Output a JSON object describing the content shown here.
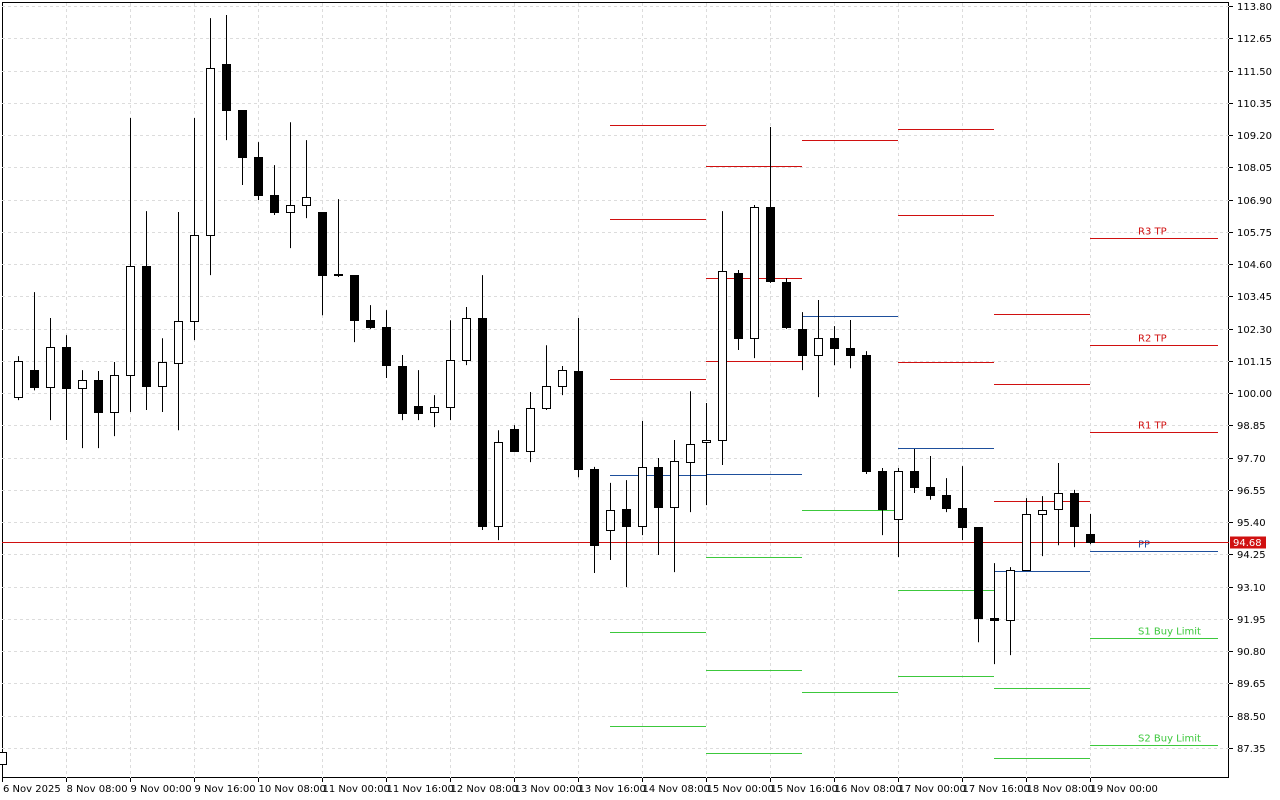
{
  "chart_data": {
    "type": "candlestick",
    "categories": [
      "6 Nov 2025",
      null,
      null,
      null,
      "8 Nov 08:00",
      null,
      null,
      null,
      "9 Nov 00:00",
      null,
      null,
      null,
      "9 Nov 16:00",
      null,
      null,
      null,
      "10 Nov 08:00",
      null,
      null,
      null,
      "11 Nov 00:00",
      null,
      null,
      null,
      "11 Nov 16:00",
      null,
      null,
      null,
      "12 Nov 08:00",
      null,
      null,
      null,
      "13 Nov 00:00",
      null,
      null,
      null,
      "13 Nov 16:00",
      null,
      null,
      null,
      "14 Nov 08:00",
      null,
      null,
      null,
      "15 Nov 00:00",
      null,
      null,
      null,
      "15 Nov 16:00",
      null,
      null,
      null,
      "16 Nov 08:00",
      null,
      null,
      null,
      "17 Nov 00:00",
      null,
      null,
      null,
      "17 Nov 16:00",
      null,
      null,
      null,
      "18 Nov 08:00",
      null,
      null,
      null,
      "19 Nov 00:00"
    ],
    "open": [
      86.78,
      99.86,
      100.82,
      100.22,
      101.64,
      100.18,
      100.47,
      99.33,
      100.64,
      104.53,
      100.25,
      101.07,
      102.57,
      105.64,
      111.73,
      110.09,
      108.42,
      107.06,
      106.46,
      106.71,
      106.46,
      104.25,
      104.21,
      102.61,
      102.36,
      100.96,
      99.54,
      99.33,
      99.5,
      101.18,
      102.68,
      95.26,
      98.72,
      97.94,
      99.47,
      100.25,
      100.79,
      97.3,
      95.12,
      95.87,
      95.26,
      97.37,
      95.94,
      97.55,
      98.26,
      98.33,
      104.28,
      101.96,
      106.63,
      103.96,
      102.29,
      101.36,
      101.96,
      101.61,
      101.36,
      97.22,
      95.51,
      97.22,
      96.65,
      96.37,
      95.9,
      95.23,
      91.98,
      91.91,
      93.69,
      95.69,
      95.87,
      96.44,
      94.98
    ],
    "high": [
      87.25,
      101.32,
      103.6,
      102.68,
      102.07,
      100.82,
      100.79,
      101.11,
      109.81,
      106.49,
      101.96,
      106.46,
      109.81,
      113.37,
      113.48,
      110.09,
      108.95,
      108.13,
      109.66,
      109.02,
      106.46,
      106.92,
      104.21,
      103.14,
      102.96,
      101.36,
      100.82,
      99.93,
      102.6,
      103.07,
      104.21,
      98.68,
      98.86,
      100.04,
      101.71,
      100.97,
      102.68,
      97.37,
      96.8,
      96.9,
      99.01,
      97.69,
      98.33,
      100.07,
      99.65,
      106.49,
      104.39,
      106.71,
      109.49,
      104.1,
      102.89,
      103.32,
      102.39,
      102.61,
      101.5,
      97.33,
      97.33,
      98.01,
      97.76,
      96.97,
      97.4,
      95.23,
      93.94,
      93.8,
      96.26,
      96.33,
      97.51,
      96.55,
      95.69
    ],
    "low": [
      86.75,
      99.75,
      100.1,
      99.04,
      98.33,
      98.04,
      98.04,
      98.47,
      99.33,
      99.4,
      99.33,
      98.68,
      101.89,
      104.21,
      109.02,
      107.42,
      106.88,
      106.35,
      105.17,
      106.24,
      102.78,
      104.14,
      101.82,
      102.29,
      100.54,
      99.04,
      99.04,
      98.79,
      99.04,
      101.0,
      95.12,
      94.76,
      97.9,
      97.54,
      99.4,
      99.93,
      97.0,
      93.59,
      94.05,
      93.09,
      94.94,
      94.23,
      93.62,
      95.76,
      96.01,
      97.44,
      101.54,
      101.25,
      103.93,
      102.29,
      100.82,
      99.86,
      101.0,
      100.89,
      97.12,
      94.94,
      94.16,
      96.44,
      96.2,
      95.76,
      94.76,
      91.12,
      90.34,
      90.66,
      93.69,
      94.19,
      94.58,
      94.51,
      94.62
    ],
    "close": [
      87.2,
      101.14,
      100.22,
      101.64,
      100.18,
      100.47,
      99.33,
      100.64,
      104.53,
      100.25,
      101.11,
      102.57,
      105.64,
      111.59,
      110.09,
      108.42,
      107.06,
      106.46,
      106.71,
      107.0,
      104.21,
      104.21,
      102.61,
      102.36,
      101.0,
      99.29,
      99.29,
      99.5,
      101.18,
      102.68,
      95.26,
      98.26,
      97.94,
      99.47,
      100.25,
      100.82,
      97.3,
      94.58,
      95.83,
      95.26,
      97.37,
      95.94,
      97.58,
      98.19,
      98.33,
      104.35,
      101.96,
      106.63,
      104.0,
      102.36,
      101.36,
      101.96,
      101.61,
      101.36,
      97.22,
      95.87,
      97.22,
      96.65,
      96.37,
      95.9,
      95.23,
      91.98,
      91.91,
      93.69,
      95.69,
      95.83,
      96.44,
      95.26,
      94.68
    ],
    "up_color": "#ffffff",
    "down_color": "#000000",
    "ylim": [
      86.28,
      113.91
    ],
    "yticks": [
      87.35,
      {
        "value": 88.5,
        "label": "88.50"
      },
      89.65,
      {
        "value": 90.8,
        "label": "90.80"
      },
      91.95,
      {
        "value": 93.1,
        "label": "93.10"
      },
      94.25,
      {
        "value": 95.4,
        "label": "95.40"
      },
      96.55,
      {
        "value": 97.7,
        "label": "97.70"
      },
      98.85,
      {
        "value": 100,
        "label": "100.00"
      },
      101.15,
      {
        "value": 102.3,
        "label": "102.30"
      },
      103.45,
      {
        "value": 104.6,
        "label": "104.60"
      },
      105.75,
      {
        "value": 106.9,
        "label": "106.90"
      },
      108.05,
      {
        "value": 109.2,
        "label": "109.20"
      },
      110.35,
      {
        "value": 111.5,
        "label": "111.50"
      },
      112.65,
      {
        "value": 113.8,
        "label": "113.80"
      }
    ],
    "grid": true,
    "last_price": 94.68,
    "last_price_color": "#d01010",
    "levels": [
      {
        "from": 38,
        "to": 44,
        "lines": [
          {
            "value": 109.55,
            "color": "#d01010"
          },
          {
            "value": 106.2,
            "color": "#d01010"
          },
          {
            "value": 100.5,
            "color": "#d01010"
          },
          {
            "value": 97.1,
            "color": "#1e4f9c"
          },
          {
            "value": 91.48,
            "color": "#3cc83c"
          },
          {
            "value": 88.13,
            "color": "#3cc83c"
          }
        ]
      },
      {
        "from": 44,
        "to": 50,
        "lines": [
          {
            "value": 108.1,
            "color": "#d01010"
          },
          {
            "value": 104.1,
            "color": "#d01010"
          },
          {
            "value": 101.14,
            "color": "#d01010"
          },
          {
            "value": 97.12,
            "color": "#1e4f9c"
          },
          {
            "value": 94.16,
            "color": "#3cc83c"
          },
          {
            "value": 90.13,
            "color": "#3cc83c"
          },
          {
            "value": 87.17,
            "color": "#3cc83c"
          }
        ]
      },
      {
        "from": 50,
        "to": 56,
        "lines": [
          {
            "value": 109.02,
            "color": "#d01010"
          },
          {
            "value": 102.75,
            "color": "#1e4f9c"
          },
          {
            "value": 95.83,
            "color": "#3cc83c"
          },
          {
            "value": 89.34,
            "color": "#3cc83c"
          }
        ]
      },
      {
        "from": 56,
        "to": 62,
        "lines": [
          {
            "value": 109.42,
            "color": "#d01010"
          },
          {
            "value": 106.35,
            "color": "#d01010"
          },
          {
            "value": 101.11,
            "color": "#d01010"
          },
          {
            "value": 98.04,
            "color": "#1e4f9c"
          },
          {
            "value": 92.98,
            "color": "#3cc83c"
          },
          {
            "value": 89.9,
            "color": "#3cc83c"
          }
        ]
      },
      {
        "from": 62,
        "to": 68,
        "lines": [
          {
            "value": 102.82,
            "color": "#d01010"
          },
          {
            "value": 100.32,
            "color": "#d01010"
          },
          {
            "value": 96.15,
            "color": "#d01010"
          },
          {
            "value": 93.66,
            "color": "#1e4f9c"
          },
          {
            "value": 89.49,
            "color": "#3cc83c"
          },
          {
            "value": 86.99,
            "color": "#3cc83c"
          }
        ]
      },
      {
        "from": 68,
        "to": 76,
        "lines": [
          {
            "value": 105.53,
            "color": "#d01010",
            "label": "R3 TP"
          },
          {
            "value": 101.71,
            "color": "#d01010",
            "label": "R2 TP"
          },
          {
            "value": 98.61,
            "color": "#d01010",
            "label": "R1 TP"
          },
          {
            "value": 94.37,
            "color": "#1e4f9c",
            "label": "PP"
          },
          {
            "value": 91.27,
            "color": "#3cc83c",
            "label": "S1 Buy Limit"
          },
          {
            "value": 87.45,
            "color": "#3cc83c",
            "label": "S2 Buy Limit"
          }
        ]
      }
    ]
  }
}
